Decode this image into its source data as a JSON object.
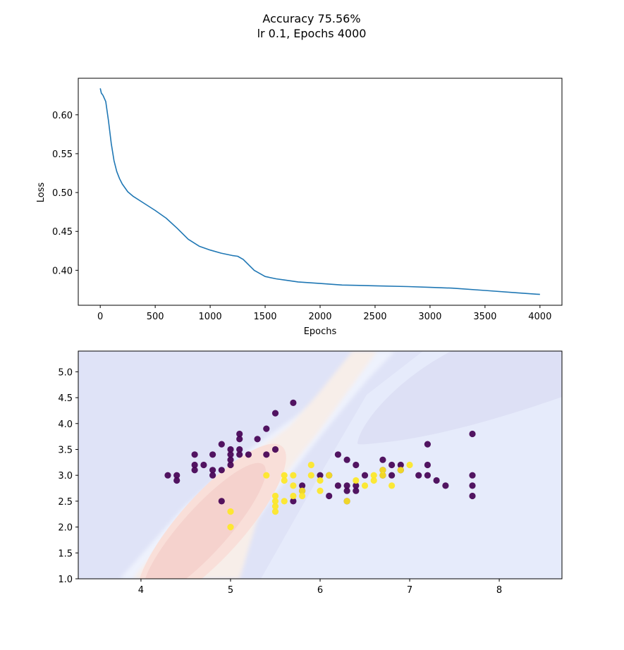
{
  "figure": {
    "title_line1": "Accuracy 75.56%",
    "title_line2": "lr 0.1, Epochs 4000"
  },
  "chart_data": [
    {
      "type": "line",
      "xlabel": "Epochs",
      "ylabel": "Loss",
      "xlim": [
        -200,
        4200
      ],
      "ylim": [
        0.355,
        0.647
      ],
      "xticks": [
        0,
        500,
        1000,
        1500,
        2000,
        2500,
        3000,
        3500,
        4000
      ],
      "yticks": [
        0.4,
        0.45,
        0.5,
        0.55,
        0.6
      ],
      "ytick_labels": [
        "0.40",
        "0.45",
        "0.50",
        "0.55",
        "0.60"
      ],
      "grid": false,
      "series": [
        {
          "color": "#1f77b4",
          "x": [
            0,
            10,
            25,
            50,
            75,
            100,
            125,
            150,
            175,
            200,
            250,
            300,
            400,
            500,
            600,
            700,
            800,
            900,
            1000,
            1100,
            1200,
            1250,
            1300,
            1350,
            1400,
            1500,
            1600,
            1700,
            1800,
            2000,
            2200,
            2500,
            2800,
            3000,
            3200,
            3500,
            3800,
            4000
          ],
          "y": [
            0.634,
            0.628,
            0.625,
            0.617,
            0.592,
            0.563,
            0.541,
            0.527,
            0.518,
            0.511,
            0.501,
            0.495,
            0.486,
            0.477,
            0.467,
            0.454,
            0.44,
            0.431,
            0.426,
            0.422,
            0.419,
            0.418,
            0.414,
            0.407,
            0.4,
            0.392,
            0.389,
            0.387,
            0.385,
            0.383,
            0.381,
            0.38,
            0.379,
            0.378,
            0.377,
            0.374,
            0.371,
            0.369
          ]
        }
      ]
    },
    {
      "type": "scatter",
      "subtype": "decision-boundary-contour",
      "xlim": [
        3.3,
        8.7
      ],
      "ylim": [
        1.0,
        5.4
      ],
      "xticks": [
        4,
        5,
        6,
        7,
        8
      ],
      "yticks": [
        1.0,
        1.5,
        2.0,
        2.5,
        3.0,
        3.5,
        4.0,
        4.5,
        5.0
      ],
      "ytick_labels": [
        "1.0",
        "1.5",
        "2.0",
        "2.5",
        "3.0",
        "3.5",
        "4.0",
        "4.5",
        "5.0"
      ],
      "grid": false,
      "colors": {
        "class_0": "#440154",
        "class_1": "#fde725",
        "contour_low": "#dde0f5",
        "contour_mid": "#e5eafb",
        "contour_high": "#f6d3d0"
      },
      "series": [
        {
          "class": 0,
          "points": [
            [
              4.3,
              3.0
            ],
            [
              4.4,
              3.0
            ],
            [
              4.4,
              2.9
            ],
            [
              4.6,
              3.1
            ],
            [
              4.6,
              3.2
            ],
            [
              4.6,
              3.4
            ],
            [
              4.7,
              3.2
            ],
            [
              4.8,
              3.0
            ],
            [
              4.8,
              3.1
            ],
            [
              4.8,
              3.4
            ],
            [
              4.9,
              3.1
            ],
            [
              4.9,
              3.6
            ],
            [
              4.9,
              2.5
            ],
            [
              5.0,
              3.2
            ],
            [
              5.0,
              3.3
            ],
            [
              5.0,
              3.4
            ],
            [
              5.0,
              3.5
            ],
            [
              5.1,
              3.4
            ],
            [
              5.1,
              3.5
            ],
            [
              5.1,
              3.7
            ],
            [
              5.1,
              3.8
            ],
            [
              5.2,
              3.4
            ],
            [
              5.3,
              3.7
            ],
            [
              5.4,
              3.4
            ],
            [
              5.4,
              3.9
            ],
            [
              5.5,
              3.5
            ],
            [
              5.5,
              4.2
            ],
            [
              5.7,
              4.4
            ],
            [
              5.7,
              2.5
            ],
            [
              5.8,
              2.7
            ],
            [
              5.8,
              2.8
            ],
            [
              6.0,
              3.0
            ],
            [
              6.1,
              3.0
            ],
            [
              6.1,
              2.6
            ],
            [
              6.2,
              2.8
            ],
            [
              6.2,
              3.4
            ],
            [
              6.3,
              2.5
            ],
            [
              6.3,
              2.7
            ],
            [
              6.3,
              2.8
            ],
            [
              6.3,
              3.3
            ],
            [
              6.4,
              2.7
            ],
            [
              6.4,
              2.8
            ],
            [
              6.4,
              3.2
            ],
            [
              6.5,
              3.0
            ],
            [
              6.7,
              3.0
            ],
            [
              6.7,
              3.1
            ],
            [
              6.7,
              3.3
            ],
            [
              6.8,
              3.0
            ],
            [
              6.8,
              3.2
            ],
            [
              6.9,
              3.1
            ],
            [
              6.9,
              3.2
            ],
            [
              7.1,
              3.0
            ],
            [
              7.2,
              3.0
            ],
            [
              7.2,
              3.2
            ],
            [
              7.2,
              3.6
            ],
            [
              7.3,
              2.9
            ],
            [
              7.4,
              2.8
            ],
            [
              7.7,
              2.6
            ],
            [
              7.7,
              2.8
            ],
            [
              7.7,
              3.0
            ],
            [
              7.7,
              3.8
            ]
          ]
        },
        {
          "class": 1,
          "points": [
            [
              5.0,
              2.0
            ],
            [
              5.0,
              2.3
            ],
            [
              5.4,
              3.0
            ],
            [
              5.5,
              2.3
            ],
            [
              5.5,
              2.4
            ],
            [
              5.5,
              2.5
            ],
            [
              5.5,
              2.6
            ],
            [
              5.6,
              2.5
            ],
            [
              5.6,
              2.9
            ],
            [
              5.6,
              3.0
            ],
            [
              5.7,
              2.6
            ],
            [
              5.7,
              2.8
            ],
            [
              5.7,
              3.0
            ],
            [
              5.8,
              2.6
            ],
            [
              5.8,
              2.7
            ],
            [
              5.9,
              3.0
            ],
            [
              5.9,
              3.2
            ],
            [
              6.0,
              2.7
            ],
            [
              6.0,
              2.9
            ],
            [
              6.1,
              3.0
            ],
            [
              6.3,
              2.5
            ],
            [
              6.4,
              2.9
            ],
            [
              6.5,
              2.8
            ],
            [
              6.6,
              2.9
            ],
            [
              6.6,
              3.0
            ],
            [
              6.7,
              3.0
            ],
            [
              6.7,
              3.1
            ],
            [
              6.8,
              2.8
            ],
            [
              6.9,
              3.1
            ],
            [
              7.0,
              3.2
            ]
          ]
        }
      ]
    }
  ]
}
